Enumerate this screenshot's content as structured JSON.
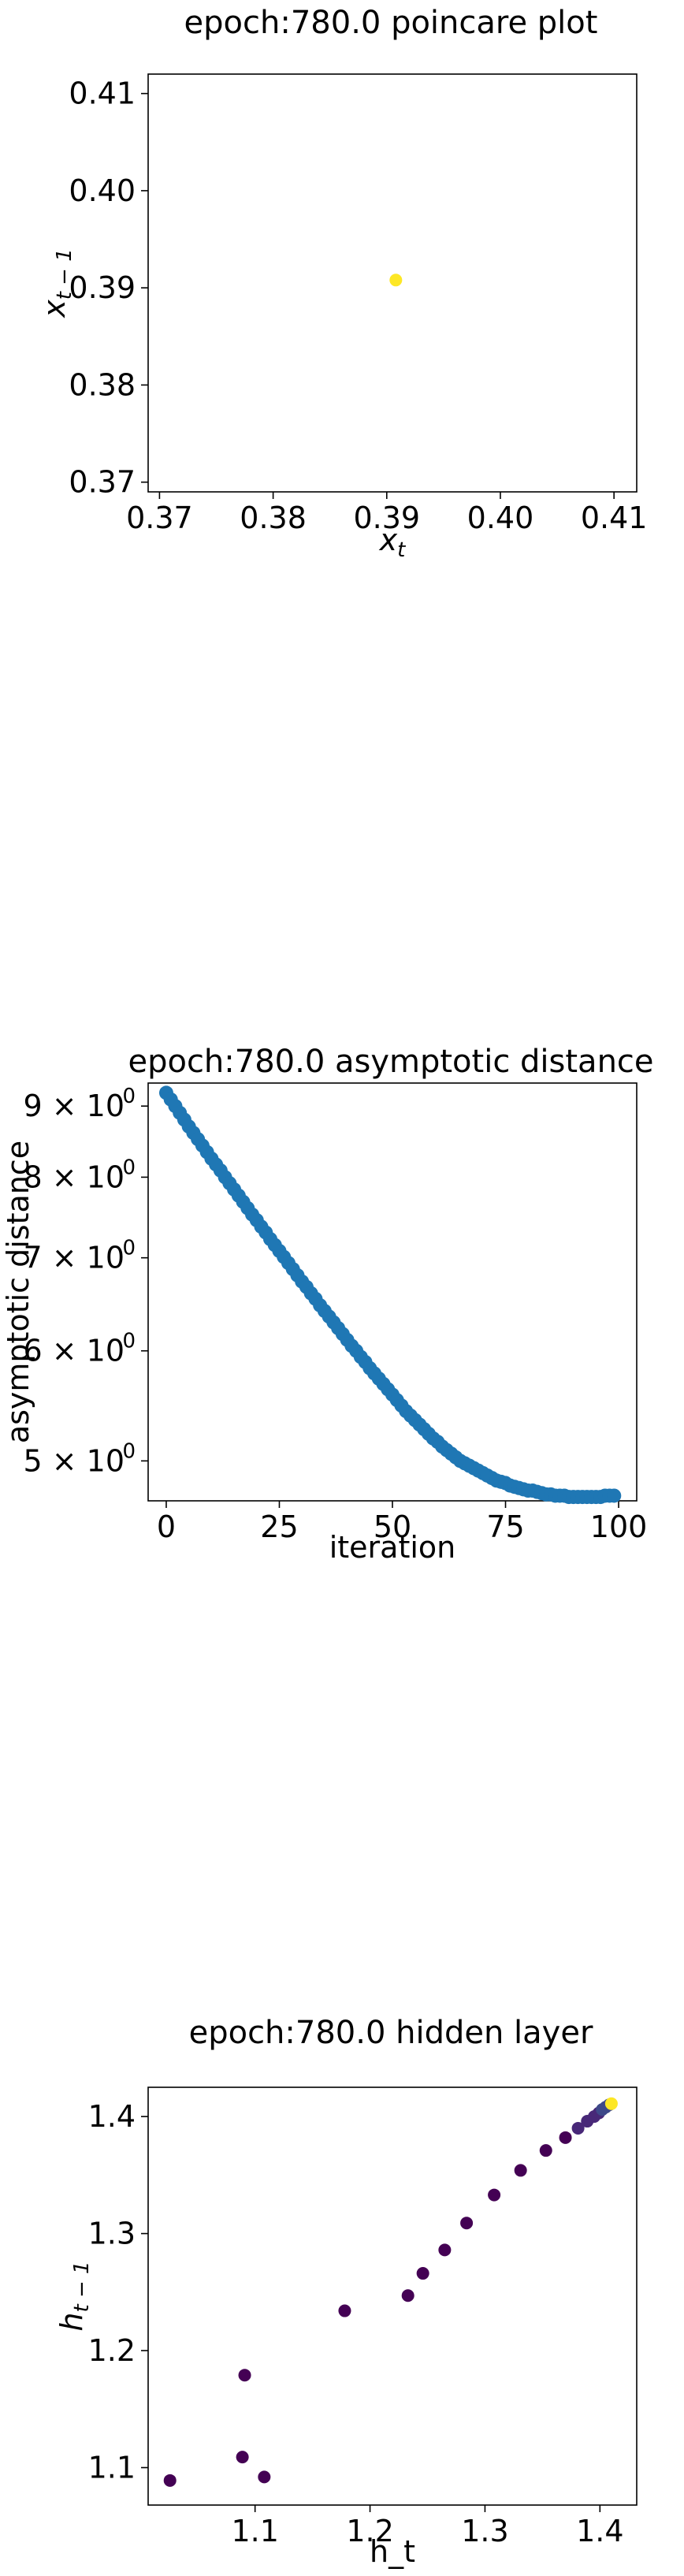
{
  "chart_data": [
    {
      "type": "scatter",
      "title": "epoch:780.0 poincare plot",
      "xlabel": "x_t",
      "ylabel": "x_{t−1}",
      "xlim": [
        0.369,
        0.412
      ],
      "ylim": [
        0.369,
        0.412
      ],
      "x_ticks": [
        0.37,
        0.38,
        0.39,
        0.4,
        0.41
      ],
      "x_tick_labels": [
        "0.37",
        "0.38",
        "0.39",
        "0.40",
        "0.41"
      ],
      "y_ticks": [
        0.37,
        0.38,
        0.39,
        0.4,
        0.41
      ],
      "y_tick_labels": [
        "0.37",
        "0.38",
        "0.39",
        "0.40",
        "0.41"
      ],
      "points": [
        {
          "x": 0.3908,
          "y": 0.3908
        }
      ],
      "point_color": "#fde725"
    },
    {
      "type": "scatter",
      "title": "epoch:780.0 asymptotic distance",
      "xlabel": "iteration",
      "ylabel": "asymptotic distance",
      "yscale": "log",
      "xlim": [
        -4,
        104
      ],
      "ylim": [
        4.68,
        9.35
      ],
      "x_ticks": [
        0,
        25,
        50,
        75,
        100
      ],
      "x_tick_labels": [
        "0",
        "25",
        "50",
        "75",
        "100"
      ],
      "y_ticks": [
        5,
        6,
        7,
        8,
        9
      ],
      "y_tick_labels": [
        "5 × 10",
        "6 × 10",
        "7 × 10",
        "8 × 10",
        "9 × 10"
      ],
      "y_tick_exponent": "0",
      "point_color": "#1f77b4",
      "y": [
        9.2,
        9.1,
        9.0,
        8.9,
        8.8,
        8.7,
        8.61,
        8.52,
        8.43,
        8.34,
        8.25,
        8.17,
        8.09,
        8.0,
        7.92,
        7.84,
        7.76,
        7.68,
        7.6,
        7.52,
        7.45,
        7.37,
        7.3,
        7.22,
        7.15,
        7.08,
        7.01,
        6.94,
        6.87,
        6.8,
        6.73,
        6.67,
        6.6,
        6.54,
        6.47,
        6.41,
        6.35,
        6.29,
        6.23,
        6.17,
        6.11,
        6.05,
        6.0,
        5.94,
        5.89,
        5.83,
        5.78,
        5.73,
        5.68,
        5.63,
        5.58,
        5.53,
        5.48,
        5.43,
        5.39,
        5.35,
        5.31,
        5.27,
        5.23,
        5.19,
        5.16,
        5.12,
        5.09,
        5.06,
        5.03,
        5.0,
        4.98,
        4.96,
        4.94,
        4.92,
        4.9,
        4.88,
        4.86,
        4.84,
        4.83,
        4.82,
        4.8,
        4.79,
        4.78,
        4.77,
        4.76,
        4.76,
        4.75,
        4.74,
        4.73,
        4.73,
        4.72,
        4.72,
        4.72,
        4.71,
        4.71,
        4.71,
        4.71,
        4.71,
        4.71,
        4.71,
        4.71,
        4.72,
        4.72,
        4.72
      ]
    },
    {
      "type": "scatter",
      "title": "epoch:780.0 hidden layer",
      "xlabel": "h_t",
      "ylabel": "h_{t−1}",
      "xlim": [
        1.007,
        1.432
      ],
      "ylim": [
        1.068,
        1.425
      ],
      "x_ticks": [
        1.1,
        1.2,
        1.3,
        1.4
      ],
      "x_tick_labels": [
        "1.1",
        "1.2",
        "1.3",
        "1.4"
      ],
      "y_ticks": [
        1.1,
        1.2,
        1.3,
        1.4
      ],
      "y_tick_labels": [
        "1.1",
        "1.2",
        "1.3",
        "1.4"
      ],
      "colormap": [
        "#440154",
        "#482878",
        "#3e4989",
        "#fde725"
      ],
      "points": [
        {
          "x": 1.026,
          "y": 1.089
        },
        {
          "x": 1.089,
          "y": 1.109
        },
        {
          "x": 1.108,
          "y": 1.092
        },
        {
          "x": 1.091,
          "y": 1.179
        },
        {
          "x": 1.178,
          "y": 1.234
        },
        {
          "x": 1.233,
          "y": 1.247
        },
        {
          "x": 1.246,
          "y": 1.266
        },
        {
          "x": 1.265,
          "y": 1.286
        },
        {
          "x": 1.284,
          "y": 1.309
        },
        {
          "x": 1.308,
          "y": 1.333
        },
        {
          "x": 1.331,
          "y": 1.354
        },
        {
          "x": 1.353,
          "y": 1.371
        },
        {
          "x": 1.37,
          "y": 1.382
        },
        {
          "x": 1.381,
          "y": 1.39
        },
        {
          "x": 1.389,
          "y": 1.396
        },
        {
          "x": 1.395,
          "y": 1.4
        },
        {
          "x": 1.399,
          "y": 1.403
        },
        {
          "x": 1.402,
          "y": 1.406
        },
        {
          "x": 1.405,
          "y": 1.408
        },
        {
          "x": 1.408,
          "y": 1.41
        },
        {
          "x": 1.41,
          "y": 1.411
        }
      ]
    }
  ]
}
